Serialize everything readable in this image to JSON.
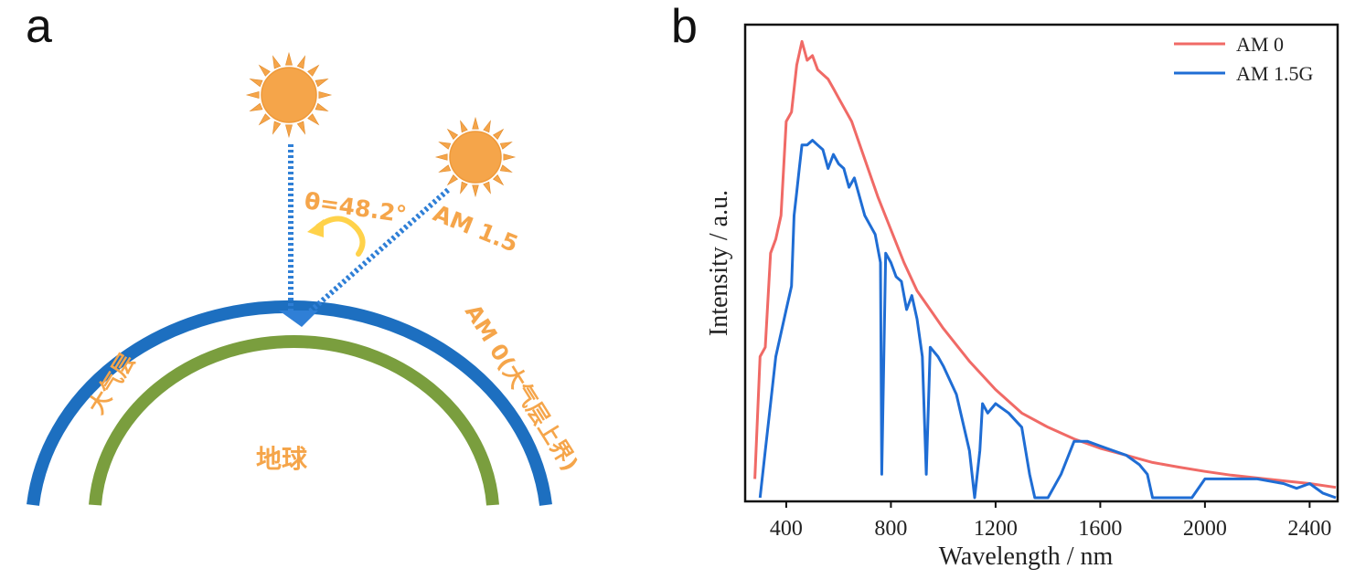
{
  "panel_a": {
    "letter": "a",
    "angle_label": "θ=48.2°",
    "am15_label": "AM 1.5",
    "am0_label": "AM 0(大气层上界)",
    "atmosphere_label": "大气层",
    "earth_label": "地球",
    "colors": {
      "sun": "#f5a54a",
      "ray": "#2f7fd6",
      "atmosphere": "#1d6fc0",
      "earth": "#7a9e3e",
      "text": "#f5a54a",
      "arrow": "#ffd24a"
    }
  },
  "panel_b": {
    "letter": "b"
  },
  "chart_data": {
    "type": "line",
    "title": "",
    "xlabel": "Wavelength / nm",
    "ylabel": "Intensity / a.u.",
    "xlim": [
      250,
      2500
    ],
    "ylim": [
      0,
      1
    ],
    "xticks": [
      "400",
      "800",
      "1200",
      "1600",
      "2000",
      "2400"
    ],
    "grid": false,
    "legend_position": "top-right",
    "series": [
      {
        "name": "AM 0",
        "color": "#f06a66",
        "x": [
          280,
          300,
          320,
          340,
          360,
          380,
          400,
          420,
          440,
          460,
          480,
          500,
          520,
          540,
          560,
          580,
          600,
          650,
          700,
          750,
          800,
          850,
          900,
          950,
          1000,
          1100,
          1200,
          1300,
          1400,
          1500,
          1600,
          1700,
          1800,
          1900,
          2000,
          2100,
          2200,
          2300,
          2400,
          2500
        ],
        "y": [
          0.04,
          0.3,
          0.32,
          0.52,
          0.55,
          0.6,
          0.8,
          0.82,
          0.92,
          0.97,
          0.93,
          0.94,
          0.91,
          0.9,
          0.89,
          0.87,
          0.85,
          0.8,
          0.72,
          0.64,
          0.57,
          0.5,
          0.44,
          0.4,
          0.36,
          0.29,
          0.23,
          0.18,
          0.15,
          0.125,
          0.105,
          0.09,
          0.075,
          0.065,
          0.056,
          0.048,
          0.042,
          0.036,
          0.03,
          0.022
        ]
      },
      {
        "name": "AM 1.5G",
        "color": "#1f6dd4",
        "x": [
          300,
          320,
          340,
          360,
          380,
          400,
          420,
          430,
          440,
          450,
          460,
          480,
          500,
          520,
          540,
          560,
          580,
          600,
          620,
          640,
          660,
          680,
          700,
          720,
          740,
          760,
          765,
          780,
          800,
          820,
          840,
          860,
          880,
          900,
          920,
          935,
          950,
          980,
          1000,
          1050,
          1100,
          1120,
          1140,
          1150,
          1170,
          1200,
          1250,
          1300,
          1330,
          1350,
          1400,
          1450,
          1500,
          1550,
          1600,
          1650,
          1700,
          1750,
          1780,
          1800,
          1850,
          1950,
          2000,
          2050,
          2100,
          2200,
          2300,
          2350,
          2400,
          2450,
          2500
        ],
        "y": [
          0.0,
          0.1,
          0.2,
          0.3,
          0.35,
          0.4,
          0.45,
          0.6,
          0.65,
          0.7,
          0.75,
          0.75,
          0.76,
          0.75,
          0.74,
          0.7,
          0.73,
          0.71,
          0.7,
          0.66,
          0.68,
          0.64,
          0.6,
          0.58,
          0.56,
          0.5,
          0.05,
          0.52,
          0.5,
          0.47,
          0.46,
          0.4,
          0.43,
          0.38,
          0.3,
          0.05,
          0.32,
          0.3,
          0.28,
          0.22,
          0.1,
          0.0,
          0.1,
          0.2,
          0.18,
          0.2,
          0.18,
          0.15,
          0.05,
          0.0,
          0.0,
          0.05,
          0.12,
          0.12,
          0.11,
          0.1,
          0.09,
          0.07,
          0.05,
          0.0,
          0.0,
          0.0,
          0.04,
          0.04,
          0.04,
          0.04,
          0.03,
          0.02,
          0.03,
          0.01,
          0.0
        ]
      }
    ]
  }
}
